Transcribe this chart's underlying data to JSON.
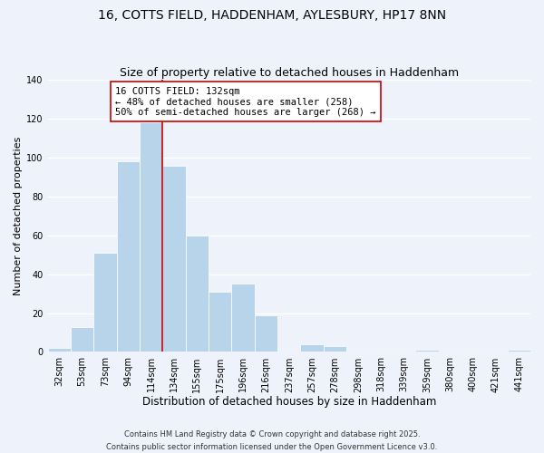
{
  "title": "16, COTTS FIELD, HADDENHAM, AYLESBURY, HP17 8NN",
  "subtitle": "Size of property relative to detached houses in Haddenham",
  "xlabel": "Distribution of detached houses by size in Haddenham",
  "ylabel": "Number of detached properties",
  "bar_labels": [
    "32sqm",
    "53sqm",
    "73sqm",
    "94sqm",
    "114sqm",
    "134sqm",
    "155sqm",
    "175sqm",
    "196sqm",
    "216sqm",
    "237sqm",
    "257sqm",
    "278sqm",
    "298sqm",
    "318sqm",
    "339sqm",
    "359sqm",
    "380sqm",
    "400sqm",
    "421sqm",
    "441sqm"
  ],
  "bar_heights": [
    2,
    13,
    51,
    98,
    118,
    96,
    60,
    31,
    35,
    19,
    0,
    4,
    3,
    0,
    0,
    0,
    1,
    0,
    0,
    0,
    1
  ],
  "bar_color": "#b8d4ea",
  "bar_edge_color": "#ffffff",
  "background_color": "#eef2fb",
  "grid_color": "#ffffff",
  "vline_x_index": 5,
  "vline_color": "#cc0000",
  "annotation_line1": "16 COTTS FIELD: 132sqm",
  "annotation_line2": "← 48% of detached houses are smaller (258)",
  "annotation_line3": "50% of semi-detached houses are larger (268) →",
  "annotation_box_color": "#ffffff",
  "annotation_box_edge_color": "#cc0000",
  "ylim": [
    0,
    140
  ],
  "yticks": [
    0,
    20,
    40,
    60,
    80,
    100,
    120,
    140
  ],
  "footer_line1": "Contains HM Land Registry data © Crown copyright and database right 2025.",
  "footer_line2": "Contains public sector information licensed under the Open Government Licence v3.0.",
  "title_fontsize": 10,
  "subtitle_fontsize": 9,
  "xlabel_fontsize": 8.5,
  "ylabel_fontsize": 8,
  "tick_fontsize": 7,
  "annotation_fontsize": 7.5,
  "footer_fontsize": 6
}
